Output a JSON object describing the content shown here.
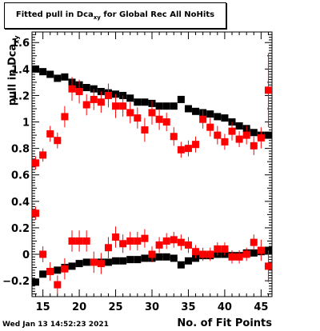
{
  "title": {
    "main": "Fitted pull in Dca",
    "sub": "xy",
    "rest": " for Global Rec All NoHits"
  },
  "ylabel": {
    "main": "pull in Dca",
    "sub": "xy"
  },
  "xlabel": "No. of Fit Points",
  "datestamp": "Wed Jan 13 14:52:23 2021",
  "chart_data": {
    "type": "scatter",
    "xlim": [
      13.5,
      46.5
    ],
    "ylim": [
      -0.32,
      1.68
    ],
    "x_ticks": [
      15,
      20,
      25,
      30,
      35,
      40,
      45
    ],
    "y_ticks": [
      -0.2,
      0,
      0.2,
      0.4,
      0.6,
      0.8,
      1,
      1.2,
      1.4,
      1.6
    ],
    "y_tick_labels": [
      "−0.2",
      "0",
      "0.2",
      "0.4",
      "0.6",
      "0.8",
      "1",
      "1.2",
      "1.4",
      "1.6"
    ],
    "x": [
      14,
      15,
      16,
      17,
      18,
      19,
      20,
      21,
      22,
      23,
      24,
      25,
      26,
      27,
      28,
      29,
      30,
      31,
      32,
      33,
      34,
      35,
      36,
      37,
      38,
      39,
      40,
      41,
      42,
      43,
      44,
      45,
      46
    ],
    "series": [
      {
        "color": "#000000",
        "values": [
          1.4,
          1.38,
          1.36,
          1.33,
          1.34,
          1.3,
          1.28,
          1.26,
          1.25,
          1.23,
          1.22,
          1.21,
          1.2,
          1.18,
          1.15,
          1.15,
          1.14,
          1.12,
          1.12,
          1.12,
          1.17,
          1.1,
          1.08,
          1.07,
          1.06,
          1.04,
          1.03,
          1.0,
          0.97,
          0.95,
          0.92,
          0.9,
          0.9
        ],
        "errors": [
          0.01,
          0.01,
          0.01,
          0.01,
          0.01,
          0.01,
          0.01,
          0.01,
          0.01,
          0.01,
          0.01,
          0.01,
          0.01,
          0.01,
          0.01,
          0.01,
          0.01,
          0.01,
          0.01,
          0.01,
          0.01,
          0.01,
          0.01,
          0.01,
          0.01,
          0.01,
          0.01,
          0.01,
          0.01,
          0.01,
          0.01,
          0.01,
          0.01
        ]
      },
      {
        "color": "#ff0000",
        "values": [
          0.69,
          0.75,
          0.91,
          0.86,
          1.04,
          1.25,
          1.23,
          1.13,
          1.17,
          1.15,
          1.2,
          1.12,
          1.12,
          1.07,
          1.03,
          0.94,
          1.07,
          1.02,
          1.0,
          0.89,
          0.79,
          0.8,
          0.83,
          1.02,
          0.96,
          0.9,
          0.85,
          0.93,
          0.87,
          0.9,
          0.82,
          0.88,
          1.24
        ],
        "errors": [
          0.05,
          0.05,
          0.06,
          0.06,
          0.08,
          0.09,
          0.09,
          0.08,
          0.08,
          0.08,
          0.09,
          0.09,
          0.08,
          0.08,
          0.08,
          0.09,
          0.09,
          0.08,
          0.07,
          0.07,
          0.06,
          0.06,
          0.06,
          0.07,
          0.07,
          0.07,
          0.06,
          0.07,
          0.06,
          0.07,
          0.07,
          0.08,
          0.28
        ]
      },
      {
        "color": "#000000",
        "values": [
          -0.21,
          -0.15,
          -0.13,
          -0.12,
          -0.1,
          -0.09,
          -0.07,
          -0.06,
          -0.06,
          -0.06,
          -0.06,
          -0.05,
          -0.05,
          -0.04,
          -0.04,
          -0.03,
          -0.03,
          -0.02,
          -0.02,
          -0.03,
          -0.08,
          -0.05,
          -0.03,
          -0.01,
          -0.01,
          0.0,
          0.0,
          -0.01,
          -0.01,
          0.01,
          0.01,
          0.02,
          0.03
        ],
        "errors": [
          0.01,
          0.01,
          0.01,
          0.01,
          0.01,
          0.01,
          0.01,
          0.01,
          0.01,
          0.01,
          0.01,
          0.01,
          0.01,
          0.01,
          0.01,
          0.01,
          0.01,
          0.01,
          0.01,
          0.01,
          0.01,
          0.01,
          0.01,
          0.01,
          0.01,
          0.01,
          0.01,
          0.01,
          0.01,
          0.01,
          0.01,
          0.01,
          0.01
        ]
      },
      {
        "color": "#ff0000",
        "values": [
          0.31,
          0.0,
          -0.13,
          -0.23,
          -0.11,
          0.1,
          0.1,
          0.1,
          -0.06,
          -0.07,
          0.05,
          0.13,
          0.08,
          0.1,
          0.1,
          0.12,
          0.0,
          0.07,
          0.1,
          0.11,
          0.09,
          0.07,
          0.02,
          0.0,
          0.0,
          0.04,
          0.04,
          -0.02,
          -0.02,
          0.0,
          0.09,
          0.03,
          -0.09
        ],
        "errors": [
          0.05,
          0.06,
          0.07,
          0.07,
          0.08,
          0.08,
          0.08,
          0.08,
          0.08,
          0.08,
          0.08,
          0.08,
          0.07,
          0.07,
          0.07,
          0.07,
          0.06,
          0.06,
          0.06,
          0.06,
          0.06,
          0.06,
          0.05,
          0.05,
          0.05,
          0.05,
          0.05,
          0.05,
          0.05,
          0.05,
          0.06,
          0.08,
          0.12
        ]
      }
    ]
  }
}
